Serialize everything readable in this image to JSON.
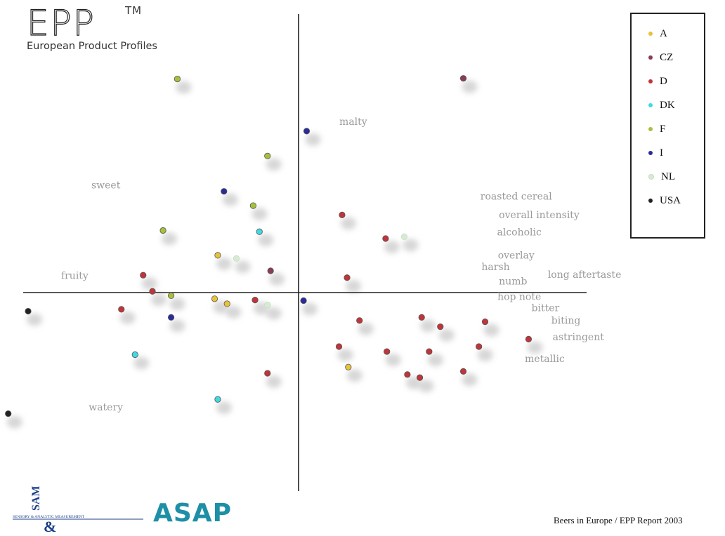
{
  "header": {
    "logo": "EPP",
    "trademark": "TM",
    "subtitle": "European Product Profiles"
  },
  "footer": {
    "report": "Beers in Europe / EPP Report 2003",
    "asap_logo": "ASAP",
    "sam_logo": "SAM",
    "sam_caption": "SENSORY & ANALYTIC MEASUREMENT"
  },
  "colors": {
    "A": "#e8c23a",
    "CZ": "#8a3a5a",
    "D": "#c0343a",
    "DK": "#3fd9e3",
    "F": "#a5c13a",
    "I": "#2a2a9c",
    "NL": "#d6ecd2",
    "USA": "#222222",
    "attribute": "#9a9a9a"
  },
  "chart_data": {
    "type": "scatter",
    "title": "",
    "xlabel": "",
    "ylabel": "",
    "xlim": [
      -4.6,
      5.0
    ],
    "ylim": [
      -3.4,
      4.6
    ],
    "grid": false,
    "legend": "top-right",
    "series": [
      {
        "name": "A",
        "points": [
          [
            -1.3,
            0.6
          ],
          [
            -1.35,
            -0.1
          ],
          [
            -1.15,
            -0.18
          ],
          [
            0.8,
            -1.2
          ]
        ]
      },
      {
        "name": "CZ",
        "points": [
          [
            2.65,
            3.45
          ],
          [
            -0.45,
            0.35
          ]
        ]
      },
      {
        "name": "D",
        "points": [
          [
            0.7,
            1.25
          ],
          [
            1.4,
            0.87
          ],
          [
            -2.5,
            0.28
          ],
          [
            0.78,
            0.24
          ],
          [
            -2.35,
            0.02
          ],
          [
            -0.7,
            -0.12
          ],
          [
            -2.85,
            -0.27
          ],
          [
            0.98,
            -0.45
          ],
          [
            1.98,
            -0.4
          ],
          [
            2.28,
            -0.55
          ],
          [
            3.0,
            -0.47
          ],
          [
            0.65,
            -0.87
          ],
          [
            1.42,
            -0.95
          ],
          [
            2.1,
            -0.95
          ],
          [
            2.9,
            -0.87
          ],
          [
            -0.5,
            -1.3
          ],
          [
            1.75,
            -1.32
          ],
          [
            1.95,
            -1.37
          ],
          [
            2.65,
            -1.27
          ],
          [
            3.7,
            -0.75
          ]
        ]
      },
      {
        "name": "DK",
        "points": [
          [
            -0.63,
            0.98
          ],
          [
            -2.63,
            -1.0
          ],
          [
            -1.3,
            -1.72
          ]
        ]
      },
      {
        "name": "F",
        "points": [
          [
            -1.95,
            3.44
          ],
          [
            -0.5,
            2.2
          ],
          [
            -0.73,
            1.4
          ],
          [
            -2.18,
            1.0
          ],
          [
            -2.05,
            -0.05
          ]
        ]
      },
      {
        "name": "I",
        "points": [
          [
            0.13,
            2.6
          ],
          [
            -1.2,
            1.63
          ],
          [
            -2.05,
            -0.4
          ],
          [
            0.08,
            -0.13
          ]
        ]
      },
      {
        "name": "NL",
        "points": [
          [
            -1.0,
            0.55
          ],
          [
            1.7,
            0.9
          ],
          [
            -0.5,
            -0.2
          ]
        ]
      },
      {
        "name": "USA",
        "points": [
          [
            -4.35,
            -0.3
          ],
          [
            -4.67,
            -1.95
          ]
        ]
      }
    ],
    "attributes": [
      {
        "label": "malty",
        "x": 0.88,
        "y": 2.7
      },
      {
        "label": "sweet",
        "x": -3.1,
        "y": 1.68
      },
      {
        "label": "roasted cereal",
        "x": 3.5,
        "y": 1.5
      },
      {
        "label": "overall intensity",
        "x": 3.87,
        "y": 1.2
      },
      {
        "label": "alcoholic",
        "x": 3.55,
        "y": 0.92
      },
      {
        "label": "overlay",
        "x": 3.5,
        "y": 0.55
      },
      {
        "label": "fruity",
        "x": -3.6,
        "y": 0.22
      },
      {
        "label": "harsh",
        "x": 3.17,
        "y": 0.36
      },
      {
        "label": "numb",
        "x": 3.45,
        "y": 0.13
      },
      {
        "label": "long aftertaste",
        "x": 4.6,
        "y": 0.24
      },
      {
        "label": "hop note",
        "x": 3.55,
        "y": -0.12
      },
      {
        "label": "bitter",
        "x": 3.97,
        "y": -0.3
      },
      {
        "label": "biting",
        "x": 4.3,
        "y": -0.5
      },
      {
        "label": "astringent",
        "x": 4.5,
        "y": -0.77
      },
      {
        "label": "metallic",
        "x": 3.96,
        "y": -1.12
      },
      {
        "label": "watery",
        "x": -3.1,
        "y": -1.9
      }
    ]
  }
}
